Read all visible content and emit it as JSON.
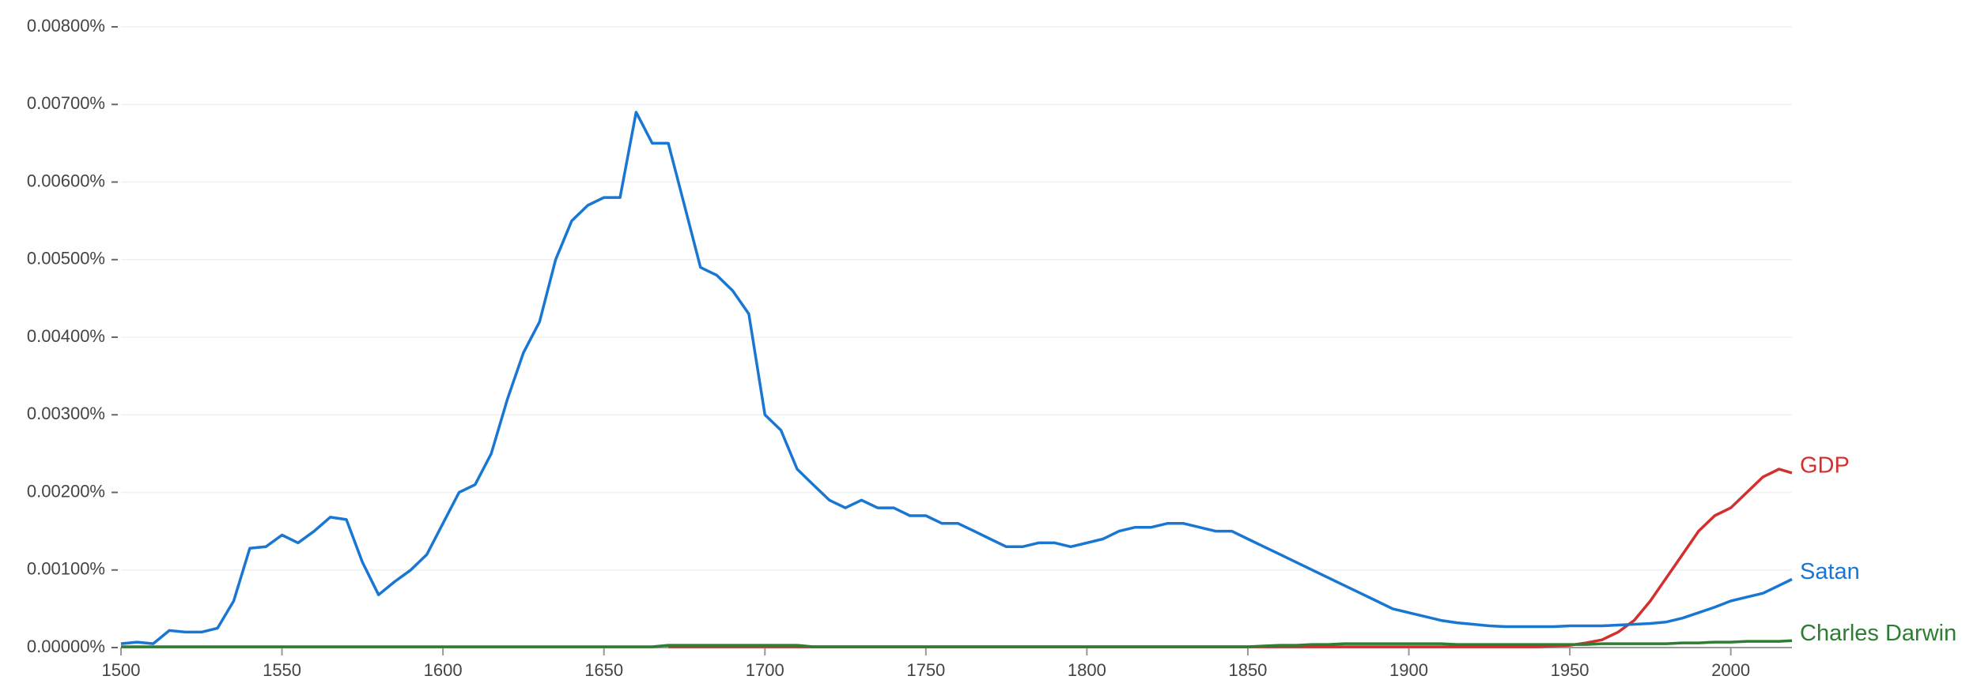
{
  "chart_data": {
    "type": "line",
    "x": [
      1500,
      1505,
      1510,
      1515,
      1520,
      1525,
      1530,
      1535,
      1540,
      1545,
      1550,
      1555,
      1560,
      1565,
      1570,
      1575,
      1580,
      1585,
      1590,
      1595,
      1600,
      1605,
      1610,
      1615,
      1620,
      1625,
      1630,
      1635,
      1640,
      1645,
      1650,
      1655,
      1660,
      1665,
      1670,
      1675,
      1680,
      1685,
      1690,
      1695,
      1700,
      1705,
      1710,
      1715,
      1720,
      1725,
      1730,
      1735,
      1740,
      1745,
      1750,
      1755,
      1760,
      1765,
      1770,
      1775,
      1780,
      1785,
      1790,
      1795,
      1800,
      1805,
      1810,
      1815,
      1820,
      1825,
      1830,
      1835,
      1840,
      1845,
      1850,
      1855,
      1860,
      1865,
      1870,
      1875,
      1880,
      1885,
      1890,
      1895,
      1900,
      1905,
      1910,
      1915,
      1920,
      1925,
      1930,
      1935,
      1940,
      1945,
      1950,
      1955,
      1960,
      1965,
      1970,
      1975,
      1980,
      1985,
      1990,
      1995,
      2000,
      2005,
      2010,
      2015,
      2019
    ],
    "series": [
      {
        "name": "GDP",
        "color": "#d32f2f",
        "values": [
          null,
          null,
          null,
          null,
          null,
          null,
          null,
          null,
          null,
          null,
          null,
          null,
          null,
          null,
          null,
          null,
          null,
          null,
          null,
          null,
          null,
          null,
          null,
          null,
          null,
          null,
          null,
          null,
          null,
          null,
          null,
          null,
          null,
          null,
          1e-05,
          1e-05,
          1e-05,
          1e-05,
          1e-05,
          1e-05,
          1e-05,
          1e-05,
          1e-05,
          1e-05,
          1e-05,
          1e-05,
          1e-05,
          1e-05,
          1e-05,
          1e-05,
          1e-05,
          1e-05,
          1e-05,
          1e-05,
          1e-05,
          1e-05,
          1e-05,
          1e-05,
          1e-05,
          1e-05,
          1e-05,
          1e-05,
          1e-05,
          1e-05,
          1e-05,
          1e-05,
          1e-05,
          1e-05,
          1e-05,
          1e-05,
          1e-05,
          1e-05,
          1e-05,
          1e-05,
          1e-05,
          1e-05,
          1e-05,
          1e-05,
          1e-05,
          1e-05,
          1e-05,
          1e-05,
          1e-05,
          1e-05,
          1e-05,
          1e-05,
          1e-05,
          1e-05,
          1e-05,
          2e-05,
          3e-05,
          6e-05,
          0.0001,
          0.0002,
          0.00035,
          0.0006,
          0.0009,
          0.0012,
          0.0015,
          0.0017,
          0.0018,
          0.002,
          0.0022,
          0.0023,
          0.00225
        ]
      },
      {
        "name": "Satan",
        "color": "#1976d2",
        "values": [
          5e-05,
          7e-05,
          5e-05,
          0.00022,
          0.0002,
          0.0002,
          0.00025,
          0.0006,
          0.00128,
          0.0013,
          0.00145,
          0.00135,
          0.0015,
          0.00168,
          0.00165,
          0.0011,
          0.00068,
          0.00085,
          0.001,
          0.0012,
          0.0016,
          0.002,
          0.0021,
          0.0025,
          0.0032,
          0.0038,
          0.0042,
          0.005,
          0.0055,
          0.0057,
          0.0058,
          0.0058,
          0.0069,
          0.0065,
          0.0065,
          0.0057,
          0.0049,
          0.0048,
          0.0046,
          0.0043,
          0.003,
          0.0028,
          0.0023,
          0.0021,
          0.0019,
          0.0018,
          0.0019,
          0.0018,
          0.0018,
          0.0017,
          0.0017,
          0.0016,
          0.0016,
          0.0015,
          0.0014,
          0.0013,
          0.0013,
          0.00135,
          0.00135,
          0.0013,
          0.00135,
          0.0014,
          0.0015,
          0.00155,
          0.00155,
          0.0016,
          0.0016,
          0.00155,
          0.0015,
          0.0015,
          0.0014,
          0.0013,
          0.0012,
          0.0011,
          0.001,
          0.0009,
          0.0008,
          0.0007,
          0.0006,
          0.0005,
          0.00045,
          0.0004,
          0.00035,
          0.00032,
          0.0003,
          0.00028,
          0.00027,
          0.00027,
          0.00027,
          0.00027,
          0.00028,
          0.00028,
          0.00028,
          0.00029,
          0.0003,
          0.00031,
          0.00033,
          0.00038,
          0.00045,
          0.00052,
          0.0006,
          0.00065,
          0.0007,
          0.0008,
          0.00088
        ]
      },
      {
        "name": "Charles Darwin",
        "color": "#2e7d32",
        "values": [
          1e-05,
          1e-05,
          1e-05,
          1e-05,
          1e-05,
          1e-05,
          1e-05,
          1e-05,
          1e-05,
          1e-05,
          1e-05,
          1e-05,
          1e-05,
          1e-05,
          1e-05,
          1e-05,
          1e-05,
          1e-05,
          1e-05,
          1e-05,
          1e-05,
          1e-05,
          1e-05,
          1e-05,
          1e-05,
          1e-05,
          1e-05,
          1e-05,
          1e-05,
          1e-05,
          1e-05,
          1e-05,
          1e-05,
          1e-05,
          3e-05,
          3e-05,
          3e-05,
          3e-05,
          3e-05,
          3e-05,
          3e-05,
          3e-05,
          3e-05,
          1e-05,
          1e-05,
          1e-05,
          1e-05,
          1e-05,
          1e-05,
          1e-05,
          1e-05,
          1e-05,
          1e-05,
          1e-05,
          1e-05,
          1e-05,
          1e-05,
          1e-05,
          1e-05,
          1e-05,
          1e-05,
          1e-05,
          1e-05,
          1e-05,
          1e-05,
          1e-05,
          1e-05,
          1e-05,
          1e-05,
          1e-05,
          1e-05,
          2e-05,
          3e-05,
          3e-05,
          4e-05,
          4e-05,
          5e-05,
          5e-05,
          5e-05,
          5e-05,
          5e-05,
          5e-05,
          5e-05,
          4e-05,
          4e-05,
          4e-05,
          4e-05,
          4e-05,
          4e-05,
          4e-05,
          4e-05,
          4e-05,
          5e-05,
          5e-05,
          5e-05,
          5e-05,
          5e-05,
          6e-05,
          6e-05,
          7e-05,
          7e-05,
          8e-05,
          8e-05,
          8e-05,
          9e-05
        ]
      }
    ],
    "xlim": [
      1500,
      2019
    ],
    "xticks": [
      1500,
      1550,
      1600,
      1650,
      1700,
      1750,
      1800,
      1850,
      1900,
      1950,
      2000
    ],
    "ylim": [
      0,
      0.008
    ],
    "yticks": [
      {
        "value": 0,
        "label": "0.00000%"
      },
      {
        "value": 0.001,
        "label": "0.00100%"
      },
      {
        "value": 0.002,
        "label": "0.00200%"
      },
      {
        "value": 0.003,
        "label": "0.00300%"
      },
      {
        "value": 0.004,
        "label": "0.00400%"
      },
      {
        "value": 0.005,
        "label": "0.00500%"
      },
      {
        "value": 0.006,
        "label": "0.00600%"
      },
      {
        "value": 0.007,
        "label": "0.00700%"
      },
      {
        "value": 0.008,
        "label": "0.00800%"
      }
    ],
    "grid": true,
    "legend": "line-end"
  }
}
